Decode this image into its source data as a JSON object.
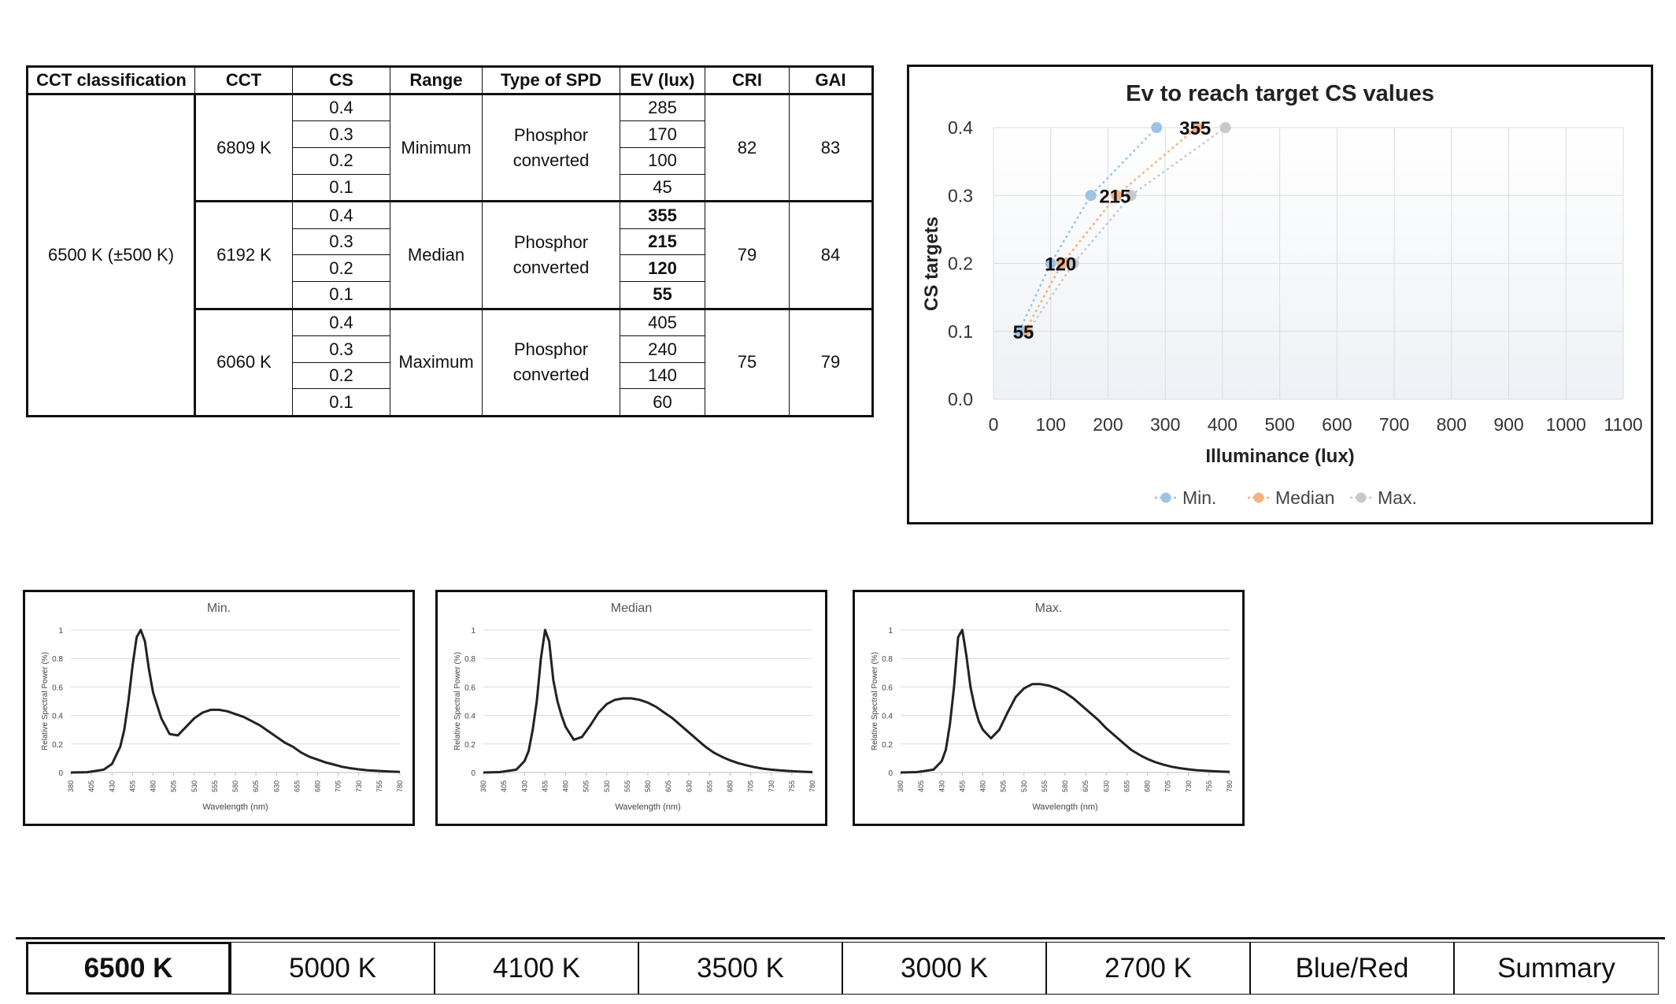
{
  "table": {
    "headers": [
      "CCT classification",
      "CCT",
      "CS",
      "Range",
      "Type of SPD",
      "EV (lux)",
      "CRI",
      "GAI"
    ],
    "classification": "6500 K (±500 K)",
    "groups": [
      {
        "cct": "6809 K",
        "range": "Minimum",
        "spd_line1": "Phosphor",
        "spd_line2": "converted",
        "cri": "82",
        "gai": "83",
        "rows": [
          {
            "cs": "0.4",
            "ev": "285"
          },
          {
            "cs": "0.3",
            "ev": "170"
          },
          {
            "cs": "0.2",
            "ev": "100"
          },
          {
            "cs": "0.1",
            "ev": "45"
          }
        ]
      },
      {
        "cct": "6192 K",
        "range": "Median",
        "spd_line1": "Phosphor",
        "spd_line2": "converted",
        "cri": "79",
        "gai": "84",
        "rows": [
          {
            "cs": "0.4",
            "ev": "355"
          },
          {
            "cs": "0.3",
            "ev": "215"
          },
          {
            "cs": "0.2",
            "ev": "120"
          },
          {
            "cs": "0.1",
            "ev": "55"
          }
        ]
      },
      {
        "cct": "6060 K",
        "range": "Maximum",
        "spd_line1": "Phosphor",
        "spd_line2": "converted",
        "cri": "75",
        "gai": "79",
        "rows": [
          {
            "cs": "0.4",
            "ev": "405"
          },
          {
            "cs": "0.3",
            "ev": "240"
          },
          {
            "cs": "0.2",
            "ev": "140"
          },
          {
            "cs": "0.1",
            "ev": "60"
          }
        ]
      }
    ]
  },
  "chart_data": [
    {
      "type": "scatter",
      "title": "Ev to reach target CS values",
      "xlabel": "Illuminance (lux)",
      "ylabel": "CS targets",
      "xlim": [
        0,
        1100
      ],
      "ylim": [
        0,
        0.4
      ],
      "xticks": [
        0,
        100,
        200,
        300,
        400,
        500,
        600,
        700,
        800,
        900,
        1000,
        1100
      ],
      "yticks": [
        "0.0",
        "0.1",
        "0.2",
        "0.3",
        "0.4"
      ],
      "grid": true,
      "legend_position": "bottom",
      "series": [
        {
          "name": "Min.",
          "color": "#9dc3e6",
          "x": [
            45,
            100,
            170,
            285
          ],
          "y": [
            0.1,
            0.2,
            0.3,
            0.4
          ]
        },
        {
          "name": "Median",
          "color": "#f4b183",
          "x": [
            55,
            120,
            215,
            355
          ],
          "y": [
            0.1,
            0.2,
            0.3,
            0.4
          ]
        },
        {
          "name": "Max.",
          "color": "#c9c9c9",
          "x": [
            60,
            140,
            240,
            405
          ],
          "y": [
            0.1,
            0.2,
            0.3,
            0.4
          ]
        }
      ],
      "data_labels": [
        "55",
        "120",
        "215",
        "355"
      ]
    },
    {
      "type": "line",
      "title": "Min.",
      "xlabel": "Wavelength (nm)",
      "ylabel": "Relative Spectral Power (%)",
      "xlim": [
        380,
        780
      ],
      "ylim": [
        0,
        1
      ],
      "xticks": [
        "380",
        "405",
        "430",
        "455",
        "480",
        "505",
        "530",
        "555",
        "580",
        "605",
        "630",
        "655",
        "680",
        "705",
        "730",
        "755",
        "780"
      ],
      "yticks": [
        "0",
        "0.2",
        "0.4",
        "0.6",
        "0.8",
        "1"
      ],
      "color": "#222222",
      "x": [
        380,
        400,
        420,
        430,
        440,
        445,
        450,
        455,
        460,
        465,
        470,
        475,
        480,
        490,
        500,
        510,
        520,
        530,
        540,
        550,
        560,
        570,
        580,
        590,
        600,
        610,
        620,
        630,
        640,
        650,
        660,
        670,
        680,
        690,
        700,
        710,
        720,
        730,
        740,
        750,
        760,
        770,
        780
      ],
      "values": [
        0,
        0.002,
        0.02,
        0.06,
        0.18,
        0.3,
        0.5,
        0.75,
        0.95,
        1.0,
        0.92,
        0.72,
        0.56,
        0.38,
        0.27,
        0.26,
        0.32,
        0.38,
        0.42,
        0.44,
        0.44,
        0.43,
        0.41,
        0.39,
        0.36,
        0.33,
        0.29,
        0.25,
        0.21,
        0.18,
        0.14,
        0.11,
        0.09,
        0.07,
        0.055,
        0.04,
        0.03,
        0.022,
        0.016,
        0.012,
        0.009,
        0.006,
        0.004
      ]
    },
    {
      "type": "line",
      "title": "Median",
      "xlabel": "Wavelength (nm)",
      "ylabel": "Relative Spectral Power (%)",
      "xlim": [
        380,
        780
      ],
      "ylim": [
        0,
        1
      ],
      "xticks": [
        "380",
        "405",
        "430",
        "455",
        "480",
        "505",
        "530",
        "555",
        "580",
        "605",
        "630",
        "655",
        "680",
        "705",
        "730",
        "755",
        "780"
      ],
      "yticks": [
        "0",
        "0.2",
        "0.4",
        "0.6",
        "0.8",
        "1"
      ],
      "color": "#222222",
      "x": [
        380,
        400,
        420,
        430,
        435,
        440,
        445,
        450,
        455,
        460,
        465,
        470,
        475,
        480,
        490,
        500,
        510,
        520,
        530,
        540,
        550,
        560,
        570,
        580,
        590,
        600,
        610,
        620,
        630,
        640,
        650,
        660,
        670,
        680,
        690,
        700,
        710,
        720,
        730,
        740,
        750,
        760,
        770,
        780
      ],
      "values": [
        0,
        0.003,
        0.02,
        0.08,
        0.15,
        0.3,
        0.5,
        0.8,
        1.0,
        0.92,
        0.65,
        0.5,
        0.4,
        0.32,
        0.23,
        0.25,
        0.33,
        0.42,
        0.48,
        0.51,
        0.52,
        0.52,
        0.51,
        0.49,
        0.46,
        0.42,
        0.38,
        0.33,
        0.28,
        0.23,
        0.18,
        0.14,
        0.11,
        0.085,
        0.065,
        0.05,
        0.037,
        0.027,
        0.02,
        0.015,
        0.011,
        0.008,
        0.005,
        0.003
      ]
    },
    {
      "type": "line",
      "title": "Max.",
      "xlabel": "Wavelength (nm)",
      "ylabel": "Relative Spectral Power (%)",
      "xlim": [
        380,
        780
      ],
      "ylim": [
        0,
        1
      ],
      "xticks": [
        "380",
        "405",
        "430",
        "455",
        "480",
        "505",
        "530",
        "555",
        "580",
        "605",
        "630",
        "655",
        "680",
        "705",
        "730",
        "755",
        "780"
      ],
      "yticks": [
        "0",
        "0.2",
        "0.4",
        "0.6",
        "0.8",
        "1"
      ],
      "color": "#222222",
      "x": [
        380,
        400,
        420,
        430,
        435,
        440,
        445,
        450,
        455,
        460,
        465,
        470,
        475,
        480,
        490,
        500,
        510,
        520,
        530,
        540,
        550,
        560,
        570,
        580,
        590,
        600,
        610,
        620,
        630,
        640,
        650,
        660,
        670,
        680,
        690,
        700,
        710,
        720,
        730,
        740,
        750,
        760,
        770,
        780
      ],
      "values": [
        0,
        0.003,
        0.02,
        0.08,
        0.16,
        0.34,
        0.6,
        0.95,
        1.0,
        0.82,
        0.6,
        0.46,
        0.36,
        0.3,
        0.24,
        0.3,
        0.42,
        0.53,
        0.59,
        0.62,
        0.62,
        0.61,
        0.59,
        0.56,
        0.52,
        0.47,
        0.42,
        0.37,
        0.31,
        0.26,
        0.21,
        0.16,
        0.125,
        0.095,
        0.072,
        0.054,
        0.04,
        0.03,
        0.022,
        0.016,
        0.012,
        0.009,
        0.006,
        0.004
      ]
    }
  ],
  "tabs": [
    {
      "label": "6500 K",
      "active": true
    },
    {
      "label": "5000 K",
      "active": false
    },
    {
      "label": "4100 K",
      "active": false
    },
    {
      "label": "3500 K",
      "active": false
    },
    {
      "label": "3000 K",
      "active": false
    },
    {
      "label": "2700 K",
      "active": false
    },
    {
      "label": "Blue/Red",
      "active": false
    },
    {
      "label": "Summary",
      "active": false
    }
  ]
}
